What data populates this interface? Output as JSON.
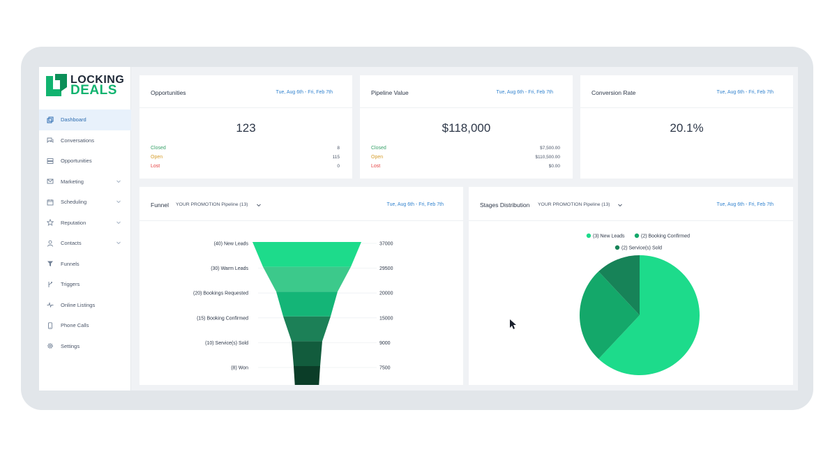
{
  "brand": {
    "line1": "LOCKING",
    "line2": "DEALS"
  },
  "sidebar": {
    "items": [
      {
        "label": "Dashboard",
        "icon": "dashboard-icon",
        "active": true
      },
      {
        "label": "Conversations",
        "icon": "chat-icon"
      },
      {
        "label": "Opportunities",
        "icon": "stack-icon"
      },
      {
        "label": "Marketing",
        "icon": "mail-icon",
        "expandable": true
      },
      {
        "label": "Scheduling",
        "icon": "calendar-icon",
        "expandable": true
      },
      {
        "label": "Reputation",
        "icon": "star-icon",
        "expandable": true
      },
      {
        "label": "Contacts",
        "icon": "person-icon",
        "expandable": true
      },
      {
        "label": "Funnels",
        "icon": "filter-icon"
      },
      {
        "label": "Triggers",
        "icon": "branch-icon"
      },
      {
        "label": "Online Listings",
        "icon": "pulse-icon"
      },
      {
        "label": "Phone Calls",
        "icon": "phone-icon"
      },
      {
        "label": "Settings",
        "icon": "gear-icon"
      }
    ]
  },
  "cards": {
    "opportunities": {
      "title": "Opportunities",
      "date": "Tue, Aug 6th - Fri, Feb 7th",
      "value": "123",
      "rows": [
        {
          "label": "Closed",
          "value": "8"
        },
        {
          "label": "Open",
          "value": "115"
        },
        {
          "label": "Lost",
          "value": "0"
        }
      ]
    },
    "pipeline_value": {
      "title": "Pipeline Value",
      "date": "Tue, Aug 6th - Fri, Feb 7th",
      "value": "$118,000",
      "rows": [
        {
          "label": "Closed",
          "value": "$7,500.00"
        },
        {
          "label": "Open",
          "value": "$110,500.00"
        },
        {
          "label": "Lost",
          "value": "$0.00"
        }
      ]
    },
    "conversion_rate": {
      "title": "Conversion Rate",
      "date": "Tue, Aug 6th - Fri, Feb 7th",
      "value": "20.1%"
    }
  },
  "funnel_panel": {
    "title": "Funnel",
    "pipeline": "YOUR PROMOTION Pipeline (13)",
    "date": "Tue, Aug 6th - Fri, Feb 7th"
  },
  "stages_panel": {
    "title": "Stages Distribution",
    "pipeline": "YOUR PROMOTION Pipeline (13)",
    "date": "Tue, Aug 6th - Fri, Feb 7th"
  },
  "colors": {
    "accent": "#11b36f",
    "link": "#3182ce",
    "funnel": [
      "#1ddb8b",
      "#3cc98b",
      "#14b577",
      "#1c8057",
      "#125c3d",
      "#0b3d28"
    ],
    "pie": [
      "#1ddb8b",
      "#14a86a",
      "#178358"
    ]
  },
  "chart_data": [
    {
      "type": "funnel",
      "categories": [
        "(40) New Leads",
        "(30) Warm Leads",
        "(20) Bookings Requested",
        "(15) Booking Confirmed",
        "(10) Service(s) Sold",
        "(8) Won"
      ],
      "values": [
        37000,
        29500,
        20000,
        15000,
        9000,
        7500
      ],
      "value_labels": [
        "37000",
        "29500",
        "20000",
        "15000",
        "9000",
        "7500"
      ]
    },
    {
      "type": "pie",
      "categories": [
        "(3) New Leads",
        "(2) Booking Confirmed",
        "(2) Service(s) Sold"
      ],
      "values": [
        62,
        26,
        12
      ],
      "legend": "top"
    }
  ]
}
